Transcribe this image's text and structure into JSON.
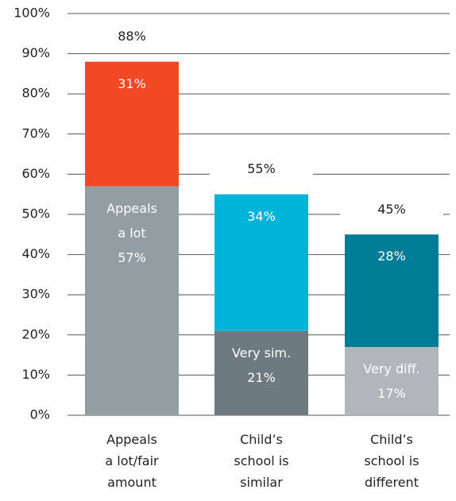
{
  "chart_data": {
    "type": "stacked_bar",
    "categories": [
      "Appeals\na lot/fair\namount",
      "Child’s\nschool is\nsimilar",
      "Child’s\nschool is\ndifferent"
    ],
    "series": [
      {
        "values": [
          57,
          21,
          17
        ],
        "value_labels": [
          "57%",
          "21%",
          "17%"
        ],
        "segment_labels": [
          "Appeals\na lot",
          "Very sim.",
          "Very diff."
        ],
        "colors": [
          "#939ea3",
          "#6d7a82",
          "#b0b7bc"
        ]
      },
      {
        "values": [
          31,
          34,
          28
        ],
        "value_labels": [
          "31%",
          "34%",
          "28%"
        ],
        "colors": [
          "#f04923",
          "#00b3d9",
          "#007c96"
        ]
      }
    ],
    "totals": [
      88,
      55,
      45
    ],
    "total_labels": [
      "88%",
      "55%",
      "45%"
    ],
    "ylim": [
      0,
      100
    ],
    "yticks": [
      {
        "value": 0,
        "label": "0%"
      },
      {
        "value": 10,
        "label": "10%"
      },
      {
        "value": 20,
        "label": "20%"
      },
      {
        "value": 30,
        "label": "30%"
      },
      {
        "value": 40,
        "label": "40%"
      },
      {
        "value": 50,
        "label": "50%"
      },
      {
        "value": 60,
        "label": "60%"
      },
      {
        "value": 70,
        "label": "70%"
      },
      {
        "value": 80,
        "label": "80%"
      },
      {
        "value": 90,
        "label": "90%"
      },
      {
        "value": 100,
        "label": "100%"
      }
    ],
    "grid": true
  }
}
